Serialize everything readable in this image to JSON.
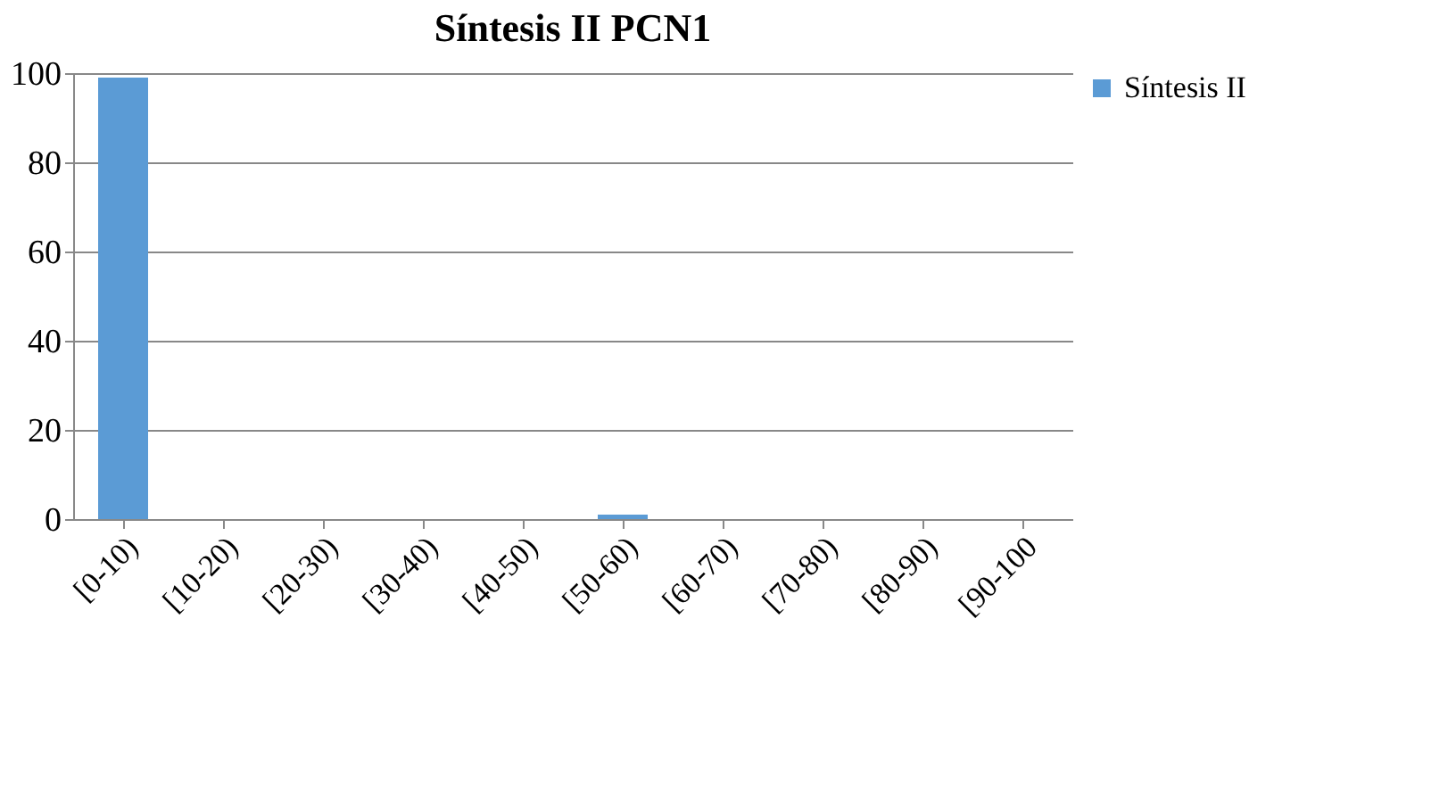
{
  "chart_data": {
    "type": "bar",
    "title": "Síntesis II PCN1",
    "categories": [
      "[0-10)",
      "[10-20)",
      "[20-30)",
      "[30-40)",
      "[40-50)",
      "[50-60)",
      "[60-70)",
      "[70-80)",
      "[80-90)",
      "[90-100"
    ],
    "series": [
      {
        "name": "Síntesis II",
        "color": "#5b9bd5",
        "values": [
          99,
          0,
          0,
          0,
          0,
          1,
          0,
          0,
          0,
          0
        ]
      }
    ],
    "ylim": [
      0,
      100
    ],
    "yticks": [
      0,
      20,
      40,
      60,
      80,
      100
    ],
    "grid": "y",
    "legend": "right"
  }
}
